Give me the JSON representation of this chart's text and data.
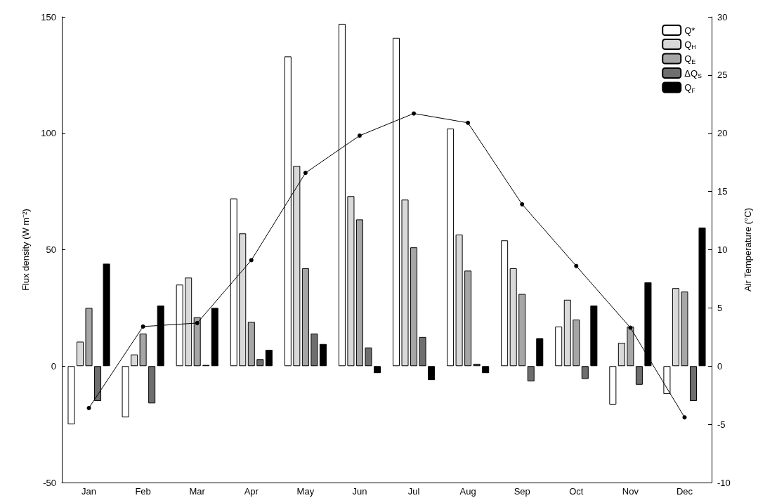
{
  "chart_data": {
    "type": "bar",
    "xlabel": null,
    "ylabel": "Flux density (W m⁻²)",
    "y2label": "Air Temperature (°C)",
    "categories": [
      "Jan",
      "Feb",
      "Mar",
      "Apr",
      "May",
      "Jun",
      "Jul",
      "Aug",
      "Sep",
      "Oct",
      "Nov",
      "Dec"
    ],
    "series": [
      {
        "name": "Q*",
        "color": "#ffffff",
        "values": [
          -25,
          -22,
          35,
          72,
          133,
          147,
          141,
          102,
          54,
          17,
          -16.5,
          -12
        ]
      },
      {
        "name": "Q$_{H}$",
        "color": "#d9d9d9",
        "values": [
          10.5,
          5,
          38,
          57,
          86,
          73,
          71.5,
          56.5,
          42,
          28.5,
          10,
          33.5
        ]
      },
      {
        "name": "Q$_{E}$",
        "color": "#a6a6a6",
        "values": [
          25,
          14,
          21,
          19,
          42,
          63,
          51,
          41,
          31,
          20,
          17,
          32
        ]
      },
      {
        "name": "ΔQ$_{S}$",
        "color": "#6e6e6e",
        "values": [
          -15,
          -16,
          0.5,
          3,
          14,
          8,
          12.5,
          1,
          -6.5,
          -5.5,
          -8,
          -15
        ]
      },
      {
        "name": "Q$_{F}$",
        "color": "#000000",
        "values": [
          44,
          26,
          25,
          7,
          9.5,
          -3,
          -6,
          -3,
          12,
          26,
          36,
          59.5
        ]
      },
      {
        "type": "line",
        "axis": "y2",
        "color": "#000000",
        "values": [
          -3.6,
          3.4,
          3.7,
          9.1,
          16.6,
          19.8,
          21.7,
          20.9,
          13.9,
          8.6,
          3.3,
          -4.4
        ]
      }
    ],
    "ylim": [
      -50,
      150
    ],
    "yticks": [
      -50,
      0,
      50,
      100,
      150
    ],
    "y2lim": [
      -10,
      30
    ],
    "y2ticks": [
      -10,
      -5,
      0,
      5,
      10,
      15,
      20,
      25,
      30
    ],
    "grid": false,
    "legend": "top right",
    "marker": "circle",
    "line_style": "solid"
  }
}
